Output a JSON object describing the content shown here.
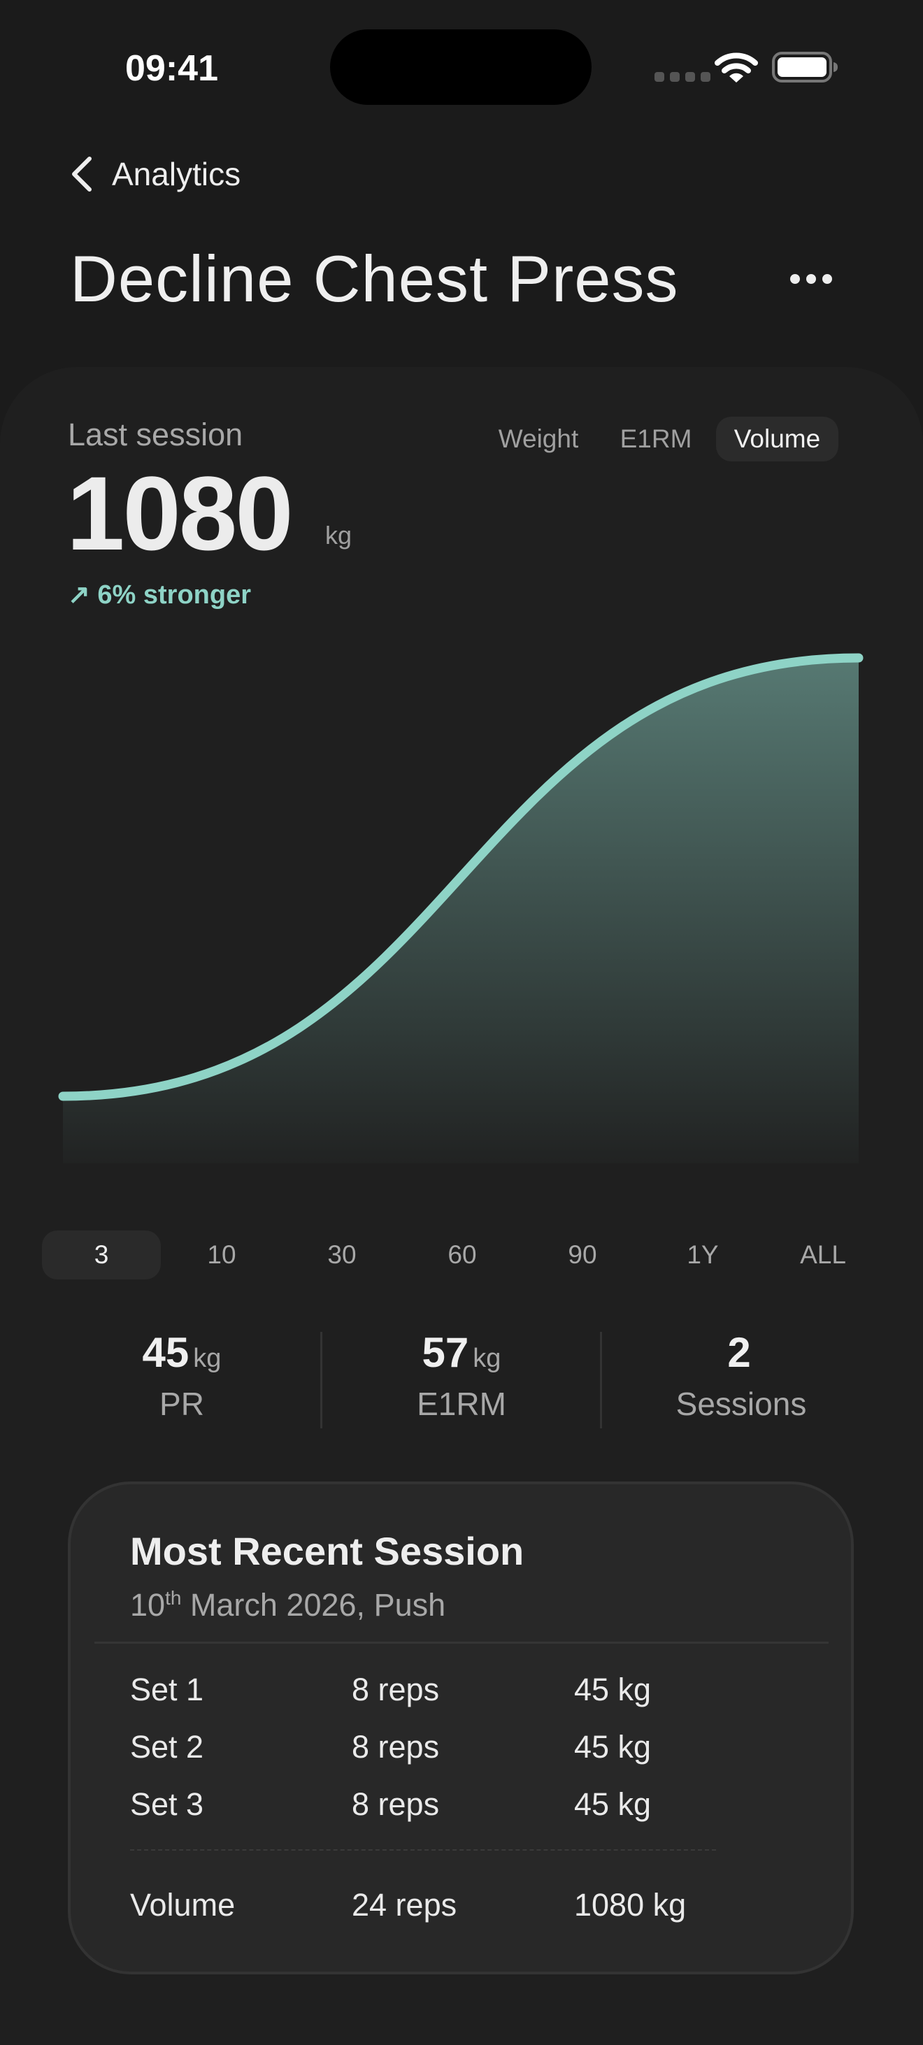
{
  "status_bar": {
    "time": "09:41",
    "wifi_icon": "wifi-icon",
    "battery_icon": "battery-full-icon"
  },
  "nav": {
    "back_label": "Analytics",
    "back_icon": "chevron-left-icon",
    "more_icon": "ellipsis-icon"
  },
  "title": "Decline Chest Press",
  "summary": {
    "label": "Last session",
    "value": "1080",
    "unit": "kg",
    "delta": "↗ 6% stronger",
    "metric_tabs": [
      {
        "label": "Weight"
      },
      {
        "label": "E1RM"
      },
      {
        "label": "Volume",
        "active": true
      }
    ]
  },
  "colors": {
    "accent": "#8ed3c6",
    "background": "#1b1b1b",
    "card": "#282828"
  },
  "chart_data": {
    "type": "area",
    "series": [
      {
        "values": [
          1019,
          1080
        ]
      }
    ],
    "grid": false,
    "axes_visible": false
  },
  "ranges": [
    {
      "label": "3",
      "active": true
    },
    {
      "label": "10"
    },
    {
      "label": "30"
    },
    {
      "label": "60"
    },
    {
      "label": "90"
    },
    {
      "label": "1Y"
    },
    {
      "label": "ALL"
    }
  ],
  "stats": [
    {
      "value": "45",
      "unit": "kg",
      "label": "PR"
    },
    {
      "value": "57",
      "unit": "kg",
      "label": "E1RM"
    },
    {
      "value": "2",
      "unit": "",
      "label": "Sessions"
    }
  ],
  "recent": {
    "title": "Most Recent Session",
    "date_day": "10",
    "date_suffix": "th",
    "date_rest": " March 2026, Push",
    "sets": [
      {
        "name": "Set 1",
        "reps": "8 reps",
        "weight": "45 kg"
      },
      {
        "name": "Set 2",
        "reps": "8 reps",
        "weight": "45 kg"
      },
      {
        "name": "Set 3",
        "reps": "8 reps",
        "weight": "45 kg"
      }
    ],
    "total": {
      "name": "Volume",
      "reps": "24 reps",
      "weight": "1080 kg"
    }
  }
}
